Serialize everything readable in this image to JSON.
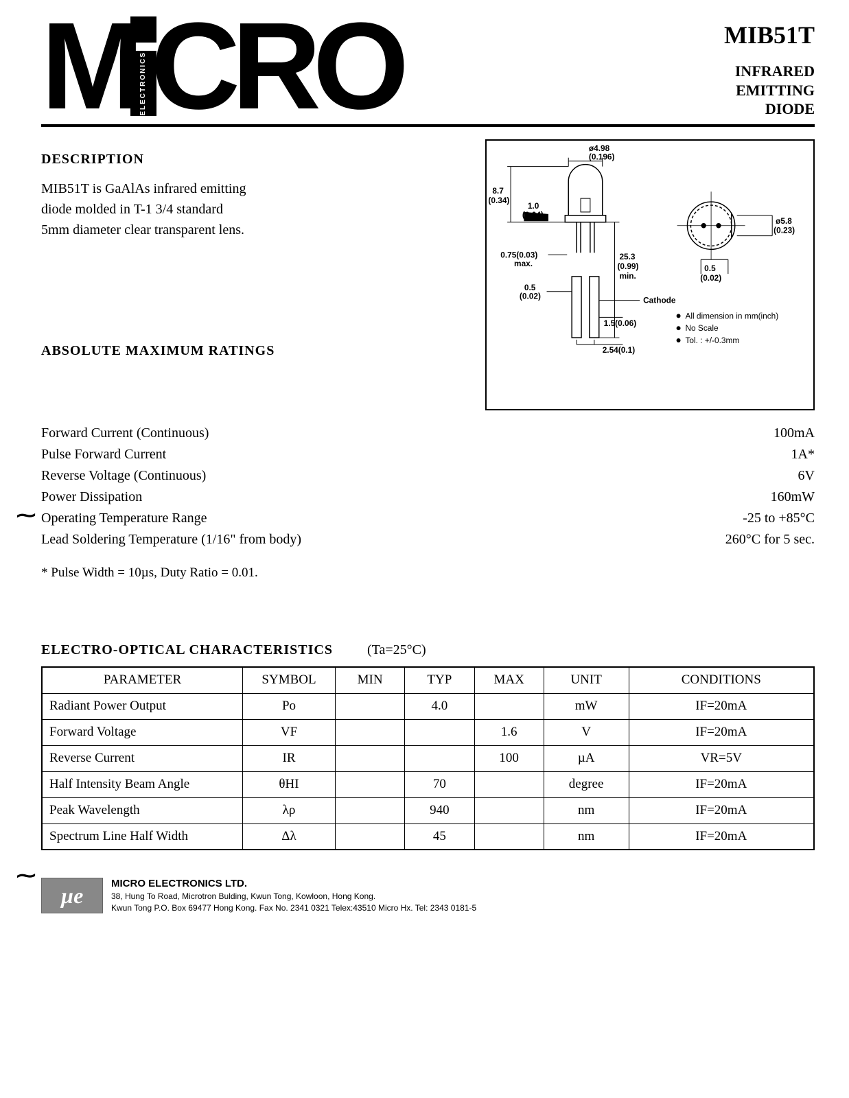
{
  "logo": {
    "main": "M",
    "rest": "CRO",
    "vertical": "ELECTRONICS"
  },
  "part": {
    "number": "MIB51T",
    "description_lines": [
      "INFRARED",
      "EMITTING",
      "DIODE"
    ]
  },
  "description": {
    "title": "DESCRIPTION",
    "body": "MIB51T is GaAlAs infrared emitting diode molded in T-1 3/4 standard 5mm diameter clear transparent lens."
  },
  "diagram": {
    "dims": {
      "d1": "ø4.98",
      "d1_in": "(0.196)",
      "h1": "8.7",
      "h1_in": "(0.34)",
      "t1": "1.0",
      "t1_in": "(0.04)",
      "flange": "0.75(0.03)",
      "flange_note": "max.",
      "lead_w": "0.5",
      "lead_w_in": "(0.02)",
      "lead_l": "25.3",
      "lead_l_in": "(0.99)",
      "lead_l_note": "min.",
      "spread": "1.5(0.06)",
      "pitch": "2.54(0.1)",
      "d2": "ø5.8",
      "d2_in": "(0.23)",
      "flat": "0.5",
      "flat_in": "(0.02)",
      "cathode": "Cathode"
    },
    "notes": [
      "All dimension in mm(inch)",
      "No Scale",
      "Tol. : +/-0.3mm"
    ]
  },
  "ratings": {
    "title": "ABSOLUTE MAXIMUM RATINGS",
    "rows": [
      {
        "label": "Forward Current (Continuous)",
        "value": "100mA"
      },
      {
        "label": "Pulse Forward Current",
        "value": "1A*"
      },
      {
        "label": "Reverse Voltage (Continuous)",
        "value": "6V"
      },
      {
        "label": "Power Dissipation",
        "value": "160mW"
      },
      {
        "label": "Operating Temperature Range",
        "value": "-25 to +85°C"
      },
      {
        "label": "Lead Soldering Temperature (1/16\" from body)",
        "value": "260°C for 5 sec."
      }
    ],
    "footnote": "* Pulse Width = 10µs, Duty Ratio = 0.01."
  },
  "characteristics": {
    "title": "ELECTRO-OPTICAL CHARACTERISTICS",
    "temp": "(Ta=25°C)",
    "columns": [
      "PARAMETER",
      "SYMBOL",
      "MIN",
      "TYP",
      "MAX",
      "UNIT",
      "CONDITIONS"
    ],
    "col_widths": [
      "26%",
      "12%",
      "9%",
      "9%",
      "9%",
      "11%",
      "24%"
    ],
    "rows": [
      {
        "param": "Radiant Power Output",
        "symbol": "Po",
        "min": "",
        "typ": "4.0",
        "max": "",
        "unit": "mW",
        "cond": "IF=20mA"
      },
      {
        "param": "Forward Voltage",
        "symbol": "VF",
        "min": "",
        "typ": "",
        "max": "1.6",
        "unit": "V",
        "cond": "IF=20mA"
      },
      {
        "param": "Reverse Current",
        "symbol": "IR",
        "min": "",
        "typ": "",
        "max": "100",
        "unit": "µA",
        "cond": "VR=5V"
      },
      {
        "param": "Half Intensity Beam Angle",
        "symbol": "θHI",
        "min": "",
        "typ": "70",
        "max": "",
        "unit": "degree",
        "cond": "IF=20mA"
      },
      {
        "param": "Peak Wavelength",
        "symbol": "λρ",
        "min": "",
        "typ": "940",
        "max": "",
        "unit": "nm",
        "cond": "IF=20mA"
      },
      {
        "param": "Spectrum Line Half Width",
        "symbol": "Δλ",
        "min": "",
        "typ": "45",
        "max": "",
        "unit": "nm",
        "cond": "IF=20mA"
      }
    ]
  },
  "footer": {
    "logo_text": "µe",
    "company": "MICRO ELECTRONICS LTD.",
    "addr1": "38, Hung To Road, Microtron Bulding, Kwun Tong, Kowloon, Hong Kong.",
    "addr2": "Kwun Tong P.O. Box 69477 Hong Kong. Fax No. 2341 0321   Telex:43510 Micro Hx.   Tel: 2343 0181-5"
  }
}
